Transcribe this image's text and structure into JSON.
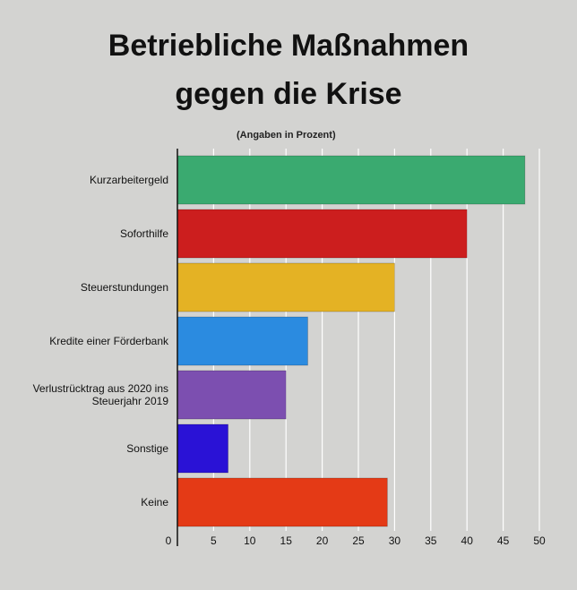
{
  "title_line1": "Betriebliche Maßnahmen",
  "title_line2": "gegen die Krise",
  "subtitle": "(Angaben in Prozent)",
  "chart_data": {
    "type": "bar",
    "orientation": "horizontal",
    "title": "Betriebliche Maßnahmen gegen die Krise",
    "subtitle": "(Angaben in Prozent)",
    "categories": [
      [
        "Kurzarbeitergeld"
      ],
      [
        "Soforthilfe"
      ],
      [
        "Steuerstundungen"
      ],
      [
        "Kredite einer Förderbank"
      ],
      [
        "Verlustrücktrag aus 2020 ins",
        "Steuerjahr 2019"
      ],
      [
        "Sonstige"
      ],
      [
        "Keine"
      ]
    ],
    "values": [
      48,
      40,
      30,
      18,
      15,
      7,
      29
    ],
    "colors": [
      "#3aaa70",
      "#cc1e1e",
      "#e4b224",
      "#2b8be0",
      "#7c4fb0",
      "#2a12d6",
      "#e43a16"
    ],
    "xlim": [
      0,
      50
    ],
    "xticks": [
      0,
      5,
      10,
      15,
      20,
      25,
      30,
      35,
      40,
      45,
      50
    ],
    "grid": true
  }
}
